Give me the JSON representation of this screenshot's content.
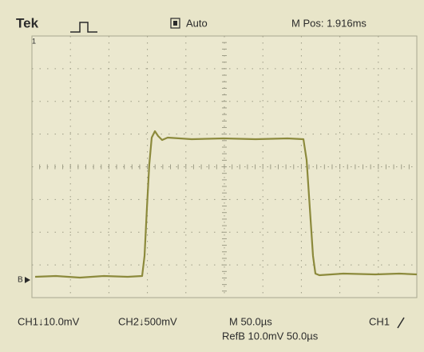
{
  "header": {
    "brand": "Tek",
    "trigger_mode": "Auto",
    "position": "M Pos: 1.916ms"
  },
  "footer": {
    "ch1": "CH1↓10.0mV",
    "ch2": "CH2↓500mV",
    "timebase": "M 50.0µs",
    "trigger_source": "CH1",
    "reference": "RefB 10.0mV 50.0µs"
  },
  "markers": {
    "reference": "B"
  }
}
